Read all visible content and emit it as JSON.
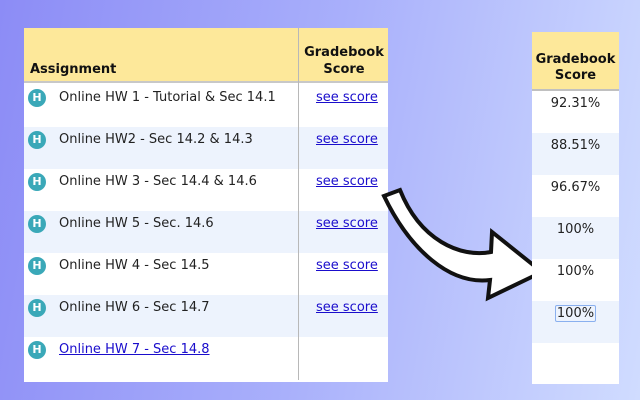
{
  "table": {
    "assignment_header": "Assignment",
    "score_header": "Gradebook Score",
    "rows": [
      {
        "icon": "H",
        "title": "Online HW 1 - Tutorial & Sec 14.1",
        "score_link": "see score"
      },
      {
        "icon": "H",
        "title": "Online HW2 - Sec 14.2 & 14.3",
        "score_link": "see score"
      },
      {
        "icon": "H",
        "title": "Online HW 3 - Sec 14.4 & 14.6",
        "score_link": "see score"
      },
      {
        "icon": "H",
        "title": "Online HW 5 - Sec. 14.6",
        "score_link": "see score"
      },
      {
        "icon": "H",
        "title": "Online HW 4 - Sec 14.5",
        "score_link": "see score"
      },
      {
        "icon": "H",
        "title": "Online HW 6 - Sec 14.7",
        "score_link": "see score"
      },
      {
        "icon": "H",
        "title": "Online HW 7 - Sec 14.8",
        "score_link": ""
      }
    ]
  },
  "scores": {
    "header": "Gradebook Score",
    "values": [
      "92.31%",
      "88.51%",
      "96.67%",
      "100%",
      "100%",
      "100%"
    ]
  }
}
